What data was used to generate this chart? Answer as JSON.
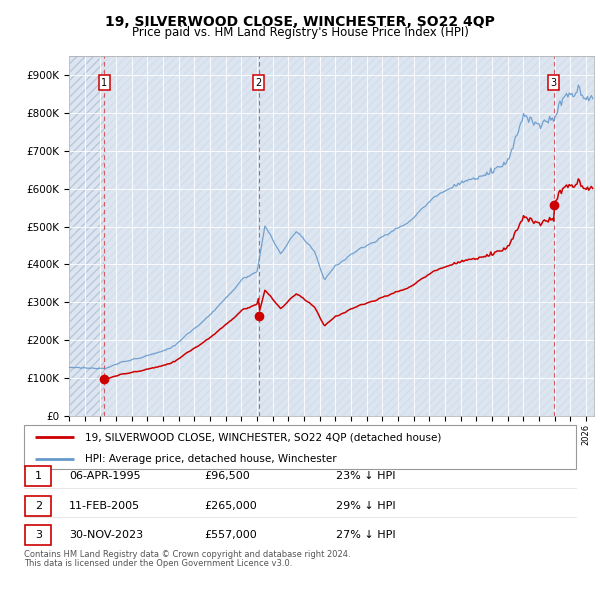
{
  "title": "19, SILVERWOOD CLOSE, WINCHESTER, SO22 4QP",
  "subtitle": "Price paid vs. HM Land Registry's House Price Index (HPI)",
  "hpi_color": "#6699cc",
  "price_color": "#cc0000",
  "sale_year_nums": [
    1995.26,
    2005.11,
    2023.92
  ],
  "sale_prices": [
    96500,
    265000,
    557000
  ],
  "sale_labels": [
    "1",
    "2",
    "3"
  ],
  "sale_info": [
    [
      "06-APR-1995",
      "£96,500",
      "23% ↓ HPI"
    ],
    [
      "11-FEB-2005",
      "£265,000",
      "29% ↓ HPI"
    ],
    [
      "30-NOV-2023",
      "£557,000",
      "27% ↓ HPI"
    ]
  ],
  "legend_line1": "19, SILVERWOOD CLOSE, WINCHESTER, SO22 4QP (detached house)",
  "legend_line2": "HPI: Average price, detached house, Winchester",
  "footer1": "Contains HM Land Registry data © Crown copyright and database right 2024.",
  "footer2": "This data is licensed under the Open Government Licence v3.0.",
  "ylim": [
    0,
    950000
  ],
  "ytick_vals": [
    0,
    100000,
    200000,
    300000,
    400000,
    500000,
    600000,
    700000,
    800000,
    900000
  ],
  "ytick_labels": [
    "£0",
    "£100K",
    "£200K",
    "£300K",
    "£400K",
    "£500K",
    "£600K",
    "£700K",
    "£800K",
    "£900K"
  ],
  "xmin": 1993.0,
  "xmax": 2026.5,
  "background_color": "#dde6f0",
  "hatch_bg_color": "#c8d4e4"
}
